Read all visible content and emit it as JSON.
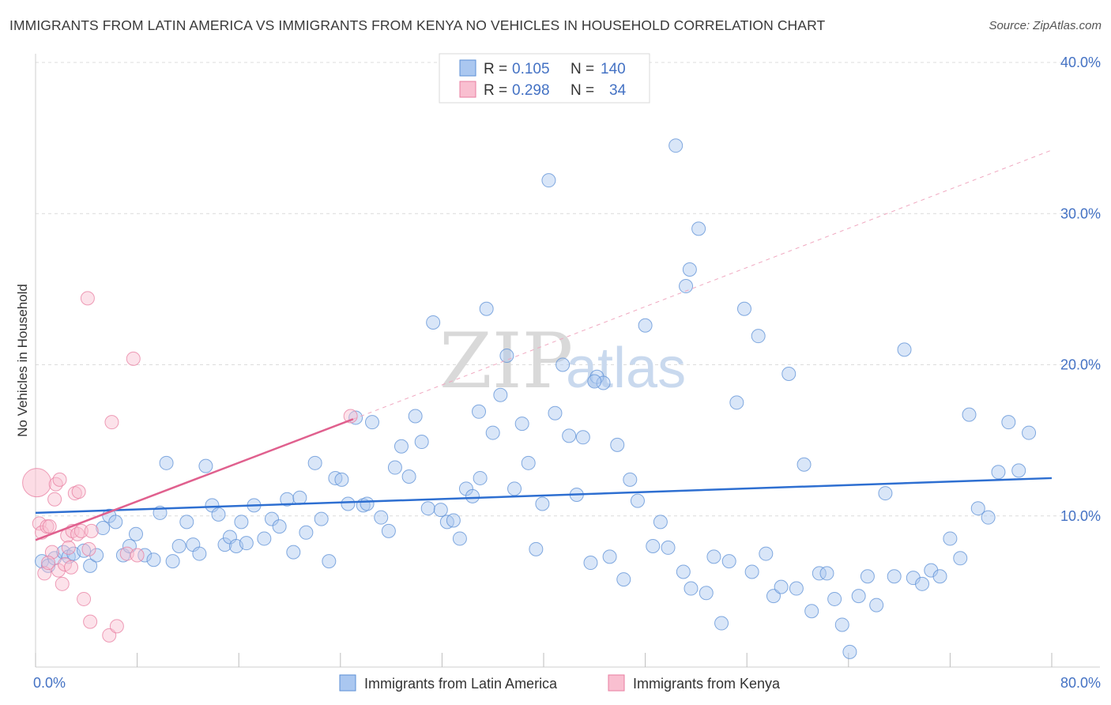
{
  "title": "IMMIGRANTS FROM LATIN AMERICA VS IMMIGRANTS FROM KENYA NO VEHICLES IN HOUSEHOLD CORRELATION CHART",
  "source": "Source: ZipAtlas.com",
  "watermark": {
    "zip": "ZIP",
    "atlas": "atlas"
  },
  "legend": {
    "r_label": "R =",
    "n_label": "N =",
    "series": [
      {
        "r": "0.105",
        "n": "140",
        "color": "#aac7f0",
        "edge": "#5b8fd6"
      },
      {
        "r": "0.298",
        "n": "34",
        "color": "#f9bfd0",
        "edge": "#e87ea0"
      }
    ]
  },
  "chart_data": {
    "type": "scatter",
    "xlabel": "",
    "ylabel": "No Vehicles in Household",
    "xlim": [
      0,
      80
    ],
    "ylim": [
      0,
      40
    ],
    "x_tick_labels": [
      "0.0%",
      "80.0%"
    ],
    "y_ticks": [
      10,
      20,
      30,
      40
    ],
    "y_tick_labels": [
      "10.0%",
      "20.0%",
      "30.0%",
      "40.0%"
    ],
    "grid": true,
    "legend_position": "top-center",
    "bottom_legend": [
      "Immigrants from Latin America",
      "Immigrants from Kenya"
    ],
    "series": [
      {
        "name": "Immigrants from Latin America",
        "color": "#aac7f0",
        "edge": "#5b8fd6",
        "trend": {
          "x": [
            0,
            80
          ],
          "y": [
            10.2,
            12.5
          ],
          "color": "#2e6fd1"
        },
        "points": [
          [
            0.5,
            7.0
          ],
          [
            1.0,
            6.7
          ],
          [
            1.5,
            7.2
          ],
          [
            2.2,
            7.6
          ],
          [
            2.6,
            7.3
          ],
          [
            3.0,
            7.5
          ],
          [
            3.8,
            7.7
          ],
          [
            4.3,
            6.7
          ],
          [
            4.8,
            7.4
          ],
          [
            5.3,
            9.2
          ],
          [
            5.8,
            10.0
          ],
          [
            6.3,
            9.6
          ],
          [
            6.9,
            7.4
          ],
          [
            7.4,
            8.0
          ],
          [
            7.9,
            8.8
          ],
          [
            8.6,
            7.4
          ],
          [
            9.3,
            7.1
          ],
          [
            9.8,
            10.2
          ],
          [
            10.3,
            13.5
          ],
          [
            10.8,
            7.0
          ],
          [
            11.3,
            8.0
          ],
          [
            11.9,
            9.6
          ],
          [
            12.4,
            8.1
          ],
          [
            12.9,
            7.5
          ],
          [
            13.4,
            13.3
          ],
          [
            13.9,
            10.7
          ],
          [
            14.4,
            10.1
          ],
          [
            14.9,
            8.1
          ],
          [
            15.3,
            8.6
          ],
          [
            15.8,
            8.0
          ],
          [
            16.2,
            9.6
          ],
          [
            16.6,
            8.2
          ],
          [
            17.2,
            10.7
          ],
          [
            18.0,
            8.5
          ],
          [
            18.6,
            9.8
          ],
          [
            19.2,
            9.3
          ],
          [
            19.8,
            11.1
          ],
          [
            20.3,
            7.6
          ],
          [
            20.8,
            11.2
          ],
          [
            21.3,
            8.9
          ],
          [
            22.0,
            13.5
          ],
          [
            22.5,
            9.8
          ],
          [
            23.1,
            7.0
          ],
          [
            23.6,
            12.5
          ],
          [
            24.1,
            12.4
          ],
          [
            24.6,
            10.8
          ],
          [
            25.2,
            16.5
          ],
          [
            25.8,
            10.7
          ],
          [
            26.5,
            16.2
          ],
          [
            27.2,
            9.9
          ],
          [
            27.8,
            9.0
          ],
          [
            28.3,
            13.2
          ],
          [
            28.8,
            14.6
          ],
          [
            29.4,
            12.6
          ],
          [
            29.9,
            16.6
          ],
          [
            30.4,
            14.9
          ],
          [
            30.9,
            10.5
          ],
          [
            31.3,
            22.8
          ],
          [
            31.9,
            10.4
          ],
          [
            32.4,
            9.6
          ],
          [
            32.9,
            9.7
          ],
          [
            33.4,
            8.5
          ],
          [
            33.9,
            11.8
          ],
          [
            34.4,
            11.3
          ],
          [
            34.9,
            16.9
          ],
          [
            35.5,
            23.7
          ],
          [
            36.0,
            15.5
          ],
          [
            36.6,
            18.0
          ],
          [
            37.1,
            20.6
          ],
          [
            37.7,
            11.8
          ],
          [
            38.3,
            16.1
          ],
          [
            38.8,
            13.5
          ],
          [
            39.4,
            7.8
          ],
          [
            39.9,
            10.8
          ],
          [
            40.4,
            32.2
          ],
          [
            40.9,
            16.8
          ],
          [
            41.5,
            20.0
          ],
          [
            42.0,
            15.3
          ],
          [
            42.6,
            11.4
          ],
          [
            43.1,
            15.2
          ],
          [
            43.7,
            6.9
          ],
          [
            44.2,
            19.2
          ],
          [
            44.7,
            18.8
          ],
          [
            45.2,
            7.3
          ],
          [
            45.8,
            14.7
          ],
          [
            46.3,
            5.8
          ],
          [
            46.8,
            12.4
          ],
          [
            47.4,
            11.0
          ],
          [
            48.0,
            22.6
          ],
          [
            48.6,
            8.0
          ],
          [
            49.2,
            9.6
          ],
          [
            49.8,
            7.9
          ],
          [
            50.4,
            34.5
          ],
          [
            51.0,
            6.3
          ],
          [
            51.6,
            5.2
          ],
          [
            52.2,
            29.0
          ],
          [
            52.8,
            4.9
          ],
          [
            53.4,
            7.3
          ],
          [
            54.0,
            2.9
          ],
          [
            54.6,
            7.0
          ],
          [
            55.2,
            17.5
          ],
          [
            55.8,
            23.7
          ],
          [
            56.4,
            6.3
          ],
          [
            56.9,
            21.9
          ],
          [
            57.5,
            7.5
          ],
          [
            58.1,
            4.7
          ],
          [
            58.7,
            5.3
          ],
          [
            59.3,
            19.4
          ],
          [
            59.9,
            5.2
          ],
          [
            60.5,
            13.4
          ],
          [
            61.1,
            3.7
          ],
          [
            61.7,
            6.2
          ],
          [
            62.3,
            6.2
          ],
          [
            62.9,
            4.5
          ],
          [
            63.5,
            2.8
          ],
          [
            64.1,
            1.0
          ],
          [
            64.8,
            4.7
          ],
          [
            65.5,
            6.0
          ],
          [
            66.2,
            4.1
          ],
          [
            66.9,
            11.5
          ],
          [
            67.6,
            6.0
          ],
          [
            68.4,
            21.0
          ],
          [
            69.1,
            5.9
          ],
          [
            69.8,
            5.5
          ],
          [
            70.5,
            6.4
          ],
          [
            71.2,
            6.0
          ],
          [
            72.0,
            8.5
          ],
          [
            72.8,
            7.2
          ],
          [
            73.5,
            16.7
          ],
          [
            74.2,
            10.5
          ],
          [
            75.0,
            9.9
          ],
          [
            75.8,
            12.9
          ],
          [
            76.6,
            16.2
          ],
          [
            77.4,
            13.0
          ],
          [
            78.2,
            15.5
          ],
          [
            51.5,
            26.3
          ],
          [
            51.2,
            25.2
          ],
          [
            26.1,
            10.8
          ],
          [
            44.0,
            18.9
          ],
          [
            35.0,
            12.5
          ]
        ]
      },
      {
        "name": "Immigrants from Kenya",
        "color": "#f9bfd0",
        "edge": "#e87ea0",
        "trend": {
          "x": [
            0,
            25
          ],
          "y": [
            8.4,
            16.4
          ],
          "color": "#e0608e",
          "extend_to": [
            80,
            34.2
          ]
        },
        "points": [
          [
            0.1,
            12.2
          ],
          [
            0.3,
            9.5
          ],
          [
            0.5,
            8.9
          ],
          [
            0.7,
            6.2
          ],
          [
            0.9,
            9.3
          ],
          [
            1.1,
            9.3
          ],
          [
            1.3,
            7.6
          ],
          [
            1.5,
            11.1
          ],
          [
            1.6,
            12.1
          ],
          [
            1.8,
            6.4
          ],
          [
            1.9,
            12.4
          ],
          [
            2.1,
            5.5
          ],
          [
            2.3,
            6.8
          ],
          [
            2.5,
            8.7
          ],
          [
            2.6,
            7.9
          ],
          [
            2.8,
            6.6
          ],
          [
            2.9,
            9.0
          ],
          [
            3.1,
            11.5
          ],
          [
            3.3,
            8.8
          ],
          [
            3.4,
            11.6
          ],
          [
            3.6,
            9.0
          ],
          [
            3.8,
            4.5
          ],
          [
            4.1,
            24.4
          ],
          [
            4.2,
            7.8
          ],
          [
            4.3,
            3.0
          ],
          [
            4.4,
            9.0
          ],
          [
            5.8,
            2.1
          ],
          [
            6.0,
            16.2
          ],
          [
            6.4,
            2.7
          ],
          [
            7.2,
            7.5
          ],
          [
            7.7,
            20.4
          ],
          [
            8.0,
            7.4
          ],
          [
            24.8,
            16.6
          ],
          [
            1.0,
            6.9
          ]
        ]
      }
    ]
  }
}
